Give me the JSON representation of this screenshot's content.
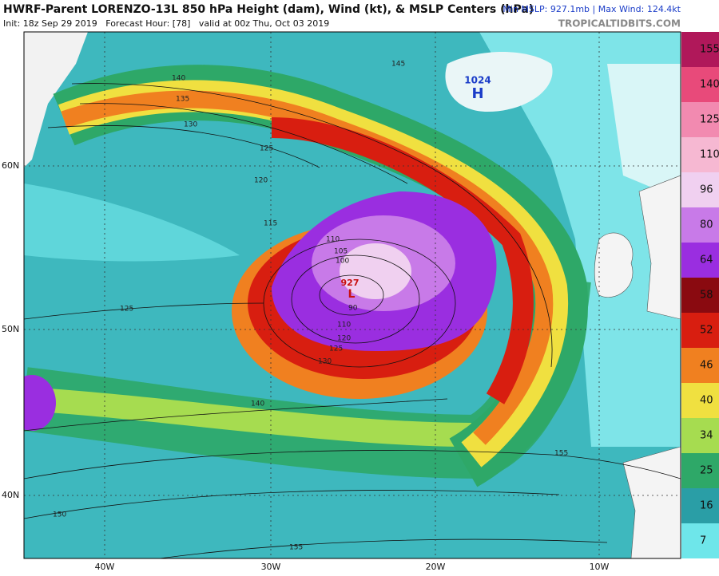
{
  "header": {
    "title": "HWRF-Parent LORENZO-13L 850 hPa Height (dam), Wind (kt), & MSLP Centers (hPa)",
    "stats": "Min MSLP: 927.1mb | Max Wind: 124.4kt",
    "init": "Init: 18z Sep 29 2019   Forecast Hour: [78]   valid at 00z Thu, Oct 03 2019",
    "site": "TROPICALTIDBITS.COM"
  },
  "map": {
    "lat_labels": [
      "60N",
      "50N",
      "40N"
    ],
    "lon_labels": [
      "40W",
      "30W",
      "20W",
      "10W"
    ],
    "high": {
      "pressure": "1024",
      "letter": "H"
    },
    "low": {
      "pressure": "927",
      "letter": "L"
    },
    "contour_labels": [
      "140",
      "135",
      "130",
      "125",
      "120",
      "115",
      "110",
      "105",
      "100",
      "90",
      "110",
      "120",
      "125",
      "130",
      "125",
      "140",
      "155",
      "150",
      "155",
      "145"
    ]
  },
  "colorbar": {
    "labels": [
      "155",
      "140",
      "125",
      "110",
      "96",
      "80",
      "64",
      "58",
      "52",
      "46",
      "40",
      "34",
      "25",
      "16",
      "7"
    ],
    "colors": [
      "#b0185a",
      "#e84a7a",
      "#f28ab0",
      "#f6b8d2",
      "#f0d0f0",
      "#c87ae8",
      "#9a2ee0",
      "#8a0a10",
      "#d81e10",
      "#f08020",
      "#f0e040",
      "#a6dc50",
      "#2ea868",
      "#2a9ea6",
      "#6ee6ea"
    ]
  }
}
